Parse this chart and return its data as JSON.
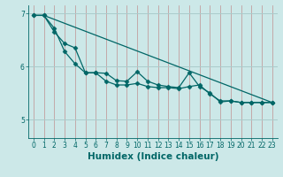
{
  "xlabel": "Humidex (Indice chaleur)",
  "background_color": "#cce8e8",
  "line_color": "#006666",
  "vgrid_color": "#c09090",
  "hgrid_color": "#aacccc",
  "xlim": [
    -0.5,
    23.5
  ],
  "ylim": [
    4.65,
    7.15
  ],
  "yticks": [
    5,
    6,
    7
  ],
  "xticks": [
    0,
    1,
    2,
    3,
    4,
    5,
    6,
    7,
    8,
    9,
    10,
    11,
    12,
    13,
    14,
    15,
    16,
    17,
    18,
    19,
    20,
    21,
    22,
    23
  ],
  "line1_x": [
    0,
    1,
    2,
    3,
    4,
    5,
    6,
    7,
    8,
    9,
    10,
    11,
    12,
    13,
    14,
    15,
    16,
    17,
    18,
    19,
    20,
    21,
    22,
    23
  ],
  "line1_y": [
    6.96,
    6.96,
    6.65,
    6.43,
    6.35,
    5.88,
    5.88,
    5.87,
    5.73,
    5.72,
    5.9,
    5.72,
    5.65,
    5.62,
    5.6,
    5.88,
    5.62,
    5.5,
    5.33,
    5.35,
    5.32,
    5.32,
    5.32,
    5.32
  ],
  "line2_x": [
    0,
    1,
    2,
    3,
    4,
    5,
    6,
    7,
    8,
    9,
    10,
    11,
    12,
    13,
    14,
    15,
    16,
    17,
    18,
    19,
    20,
    21,
    22,
    23
  ],
  "line2_y": [
    6.96,
    6.96,
    6.72,
    6.28,
    6.05,
    5.88,
    5.88,
    5.72,
    5.65,
    5.65,
    5.68,
    5.62,
    5.6,
    5.6,
    5.58,
    5.62,
    5.65,
    5.48,
    5.35,
    5.35,
    5.32,
    5.32,
    5.32,
    5.32
  ],
  "line3_x": [
    0,
    1,
    23
  ],
  "line3_y": [
    6.96,
    6.96,
    5.32
  ],
  "marker": "D",
  "marker_size": 2.5,
  "linewidth": 0.9,
  "tick_fontsize": 5.5,
  "label_fontsize": 7.5
}
